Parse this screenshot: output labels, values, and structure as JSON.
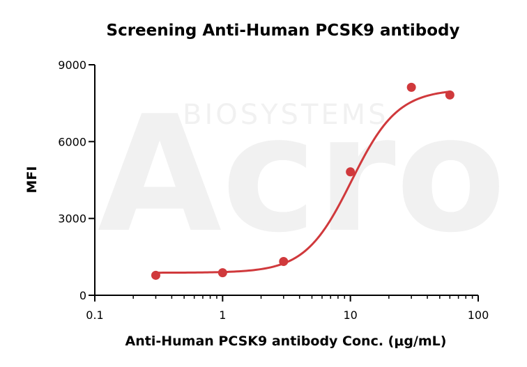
{
  "chart_data": {
    "type": "scatter",
    "title": "Screening Anti-Human PCSK9 antibody",
    "xlabel": "Anti-Human PCSK9 antibody Conc. (μg/mL)",
    "ylabel": "MFI",
    "x_scale": "log",
    "xlim": [
      0.1,
      100
    ],
    "ylim": [
      0,
      9000
    ],
    "x_ticks": [
      0.1,
      1,
      10,
      100
    ],
    "x_tick_labels": [
      "0.1",
      "1",
      "10",
      "100"
    ],
    "y_ticks": [
      0,
      3000,
      6000,
      9000
    ],
    "y_tick_labels": [
      "0",
      "3000",
      "6000",
      "9000"
    ],
    "grid": false,
    "series": [
      {
        "color": "#d0393c",
        "points": [
          {
            "x": 0.3,
            "y": 780
          },
          {
            "x": 1,
            "y": 880
          },
          {
            "x": 3,
            "y": 1320
          },
          {
            "x": 10,
            "y": 4820
          },
          {
            "x": 30,
            "y": 8120
          },
          {
            "x": 60,
            "y": 7820
          }
        ],
        "fit": "4PL sigmoidal curve"
      }
    ],
    "watermark": {
      "brand": "Acro",
      "subtitle": "BIOSYSTEMS"
    }
  }
}
